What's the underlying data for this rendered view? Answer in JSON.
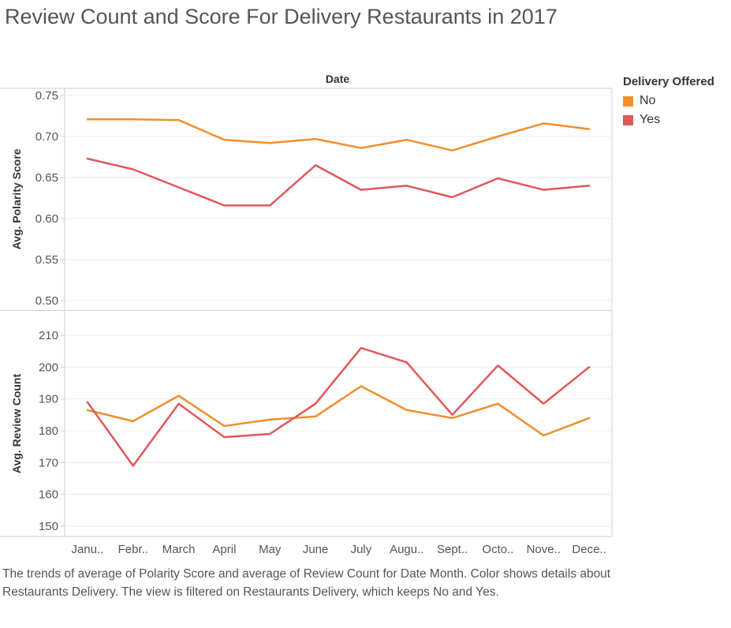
{
  "title": "Review Count and Score For Delivery Restaurants in 2017",
  "caption": "The trends of average of Polarity Score and average of Review Count for Date Month.  Color shows details about Restaurants Delivery. The view is filtered on Restaurants Delivery, which keeps No and Yes.",
  "legend": {
    "title": "Delivery Offered",
    "items": [
      {
        "label": "No",
        "color": "#F28E2B"
      },
      {
        "label": "Yes",
        "color": "#E15759"
      }
    ]
  },
  "chart_data": {
    "type": "line",
    "column_header": "Date",
    "categories": [
      "Janu..",
      "Febr..",
      "March",
      "April",
      "May",
      "June",
      "July",
      "Augu..",
      "Sept..",
      "Octo..",
      "Nove..",
      "Dece.."
    ],
    "legend_position": "top-right",
    "panels": [
      {
        "ylabel": "Avg. Polarity Score",
        "ylim": [
          0.5,
          0.75
        ],
        "yticks": [
          "0.75",
          "0.70",
          "0.65",
          "0.60",
          "0.55",
          "0.50"
        ],
        "ytick_values": [
          0.75,
          0.7,
          0.65,
          0.6,
          0.55,
          0.5
        ],
        "series": [
          {
            "name": "No",
            "color": "#F28E2B",
            "values": [
              0.721,
              0.721,
              0.72,
              0.696,
              0.692,
              0.697,
              0.686,
              0.696,
              0.683,
              0.7,
              0.716,
              0.709
            ]
          },
          {
            "name": "Yes",
            "color": "#E15759",
            "values": [
              0.673,
              0.66,
              0.638,
              0.616,
              0.616,
              0.665,
              0.635,
              0.64,
              0.626,
              0.649,
              0.635,
              0.64
            ]
          }
        ]
      },
      {
        "ylabel": "Avg. Review Count",
        "ylim": [
          148,
          213
        ],
        "yticks": [
          "210",
          "200",
          "190",
          "180",
          "170",
          "160",
          "150"
        ],
        "ytick_values": [
          210,
          200,
          190,
          180,
          170,
          160,
          150
        ],
        "series": [
          {
            "name": "No",
            "color": "#F28E2B",
            "values": [
              186.5,
              183.0,
              191.0,
              181.5,
              183.5,
              184.5,
              194.0,
              186.5,
              184.0,
              188.5,
              178.5,
              184.0
            ]
          },
          {
            "name": "Yes",
            "color": "#E15759",
            "values": [
              189.0,
              169.0,
              188.5,
              178.0,
              179.0,
              188.5,
              206.0,
              201.5,
              185.0,
              200.5,
              188.5,
              200.0
            ]
          }
        ]
      }
    ],
    "grid": true
  }
}
